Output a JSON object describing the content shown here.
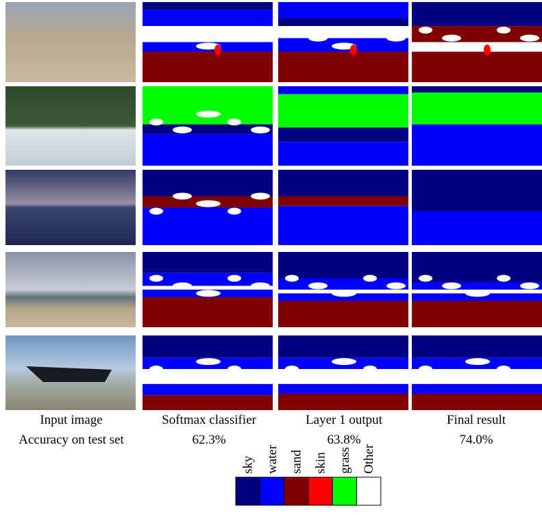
{
  "columns": [
    "Input image",
    "Softmax classifier",
    "Layer 1 output",
    "Final result"
  ],
  "accuracy": {
    "label": "Accuracy on test set",
    "values": [
      "62.3%",
      "63.8%",
      "74.0%"
    ]
  },
  "legend": [
    {
      "label": "sky",
      "color": "#000080"
    },
    {
      "label": "water",
      "color": "#0000ff"
    },
    {
      "label": "sand",
      "color": "#800000"
    },
    {
      "label": "skin",
      "color": "#ff0000"
    },
    {
      "label": "grass",
      "color": "#00ff00"
    },
    {
      "label": "Other",
      "color": "#ffffff"
    }
  ]
}
